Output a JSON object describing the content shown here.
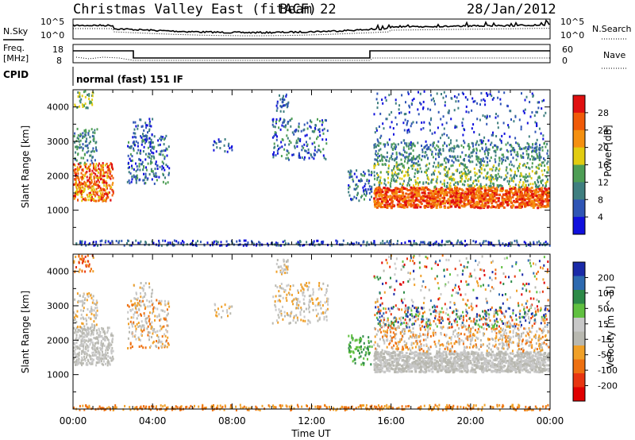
{
  "header": {
    "station": "Christmas Valley East (fitACF)",
    "beam": "Beam 22",
    "date": "28/Jan/2012"
  },
  "top_panels": {
    "nsky_label": "N.Sky",
    "nsky_ticks": [
      "10^5",
      "10^0"
    ],
    "nsearch_label": "N.Search",
    "nsearch_ticks": [
      "10^5",
      "10^0"
    ],
    "freq_label": "Freq.",
    "freq_unit": "[MHz]",
    "freq_ticks": [
      "18",
      "8"
    ],
    "nave_label": "Nave",
    "nave_ticks": [
      "60",
      "0"
    ],
    "cpid_label": "CPID",
    "cpid_value": "normal (fast) 151 IF"
  },
  "colors": {
    "power_scale": [
      "#1010dd",
      "#2f55b5",
      "#3f7f80",
      "#4e9e55",
      "#e2cc10",
      "#f59010",
      "#f05a08",
      "#e01010"
    ],
    "velocity_scale": [
      "#1a2aa8",
      "#2d6ab0",
      "#2d8a48",
      "#60c040",
      "#c8c8c8",
      "#b8b8b0",
      "#f0a028",
      "#ee7010",
      "#e83510",
      "#e00000"
    ]
  },
  "chart_data": [
    {
      "type": "heatmap",
      "name": "Power",
      "ylabel": "Slant Range [km]",
      "colorbar_label": "Power [dB]",
      "colorbar_ticks": [
        "28",
        "24",
        "20",
        "16",
        "12",
        "8",
        "4"
      ],
      "ylim": [
        0,
        4500
      ],
      "yticks": [
        "4000",
        "3000",
        "2000",
        "1000"
      ]
    },
    {
      "type": "heatmap",
      "name": "Velocity",
      "ylabel": "Slant Range [km]",
      "colorbar_label": "Velocity [m s^-1]",
      "colorbar_ticks": [
        "200",
        "100",
        "50",
        "15",
        "-15",
        "-50",
        "-100",
        "-200"
      ],
      "ylim": [
        0,
        4500
      ],
      "yticks": [
        "4000",
        "3000",
        "2000",
        "1000"
      ]
    }
  ],
  "x_axis": {
    "label": "Time UT",
    "ticks": [
      "00:00",
      "04:00",
      "08:00",
      "12:00",
      "16:00",
      "20:00",
      "00:00"
    ]
  }
}
